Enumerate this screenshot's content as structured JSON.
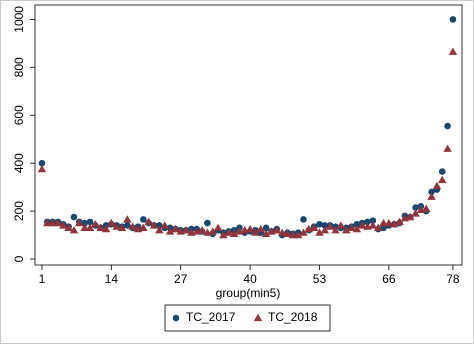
{
  "chart_data": {
    "type": "scatter",
    "x_label": "group(min5)",
    "x": [
      1,
      2,
      3,
      4,
      5,
      6,
      7,
      8,
      9,
      10,
      11,
      12,
      13,
      14,
      15,
      16,
      17,
      18,
      19,
      20,
      21,
      22,
      23,
      24,
      25,
      26,
      27,
      28,
      29,
      30,
      31,
      32,
      33,
      34,
      35,
      36,
      37,
      38,
      39,
      40,
      41,
      42,
      43,
      44,
      45,
      46,
      47,
      48,
      49,
      50,
      51,
      52,
      53,
      54,
      55,
      56,
      57,
      58,
      59,
      60,
      61,
      62,
      63,
      64,
      65,
      66,
      67,
      68,
      69,
      70,
      71,
      72,
      73,
      74,
      75,
      76,
      77,
      78
    ],
    "series": [
      {
        "name": "TC_2017",
        "color": "#1a476f",
        "marker": "circle",
        "values": [
          400,
          155,
          155,
          155,
          145,
          135,
          175,
          155,
          150,
          155,
          140,
          130,
          140,
          145,
          140,
          135,
          140,
          130,
          135,
          165,
          150,
          140,
          140,
          130,
          130,
          125,
          120,
          120,
          125,
          125,
          115,
          150,
          105,
          120,
          110,
          115,
          120,
          130,
          110,
          115,
          120,
          110,
          130,
          115,
          125,
          100,
          110,
          105,
          110,
          165,
          120,
          135,
          145,
          140,
          140,
          135,
          130,
          130,
          135,
          145,
          150,
          155,
          160,
          125,
          130,
          140,
          145,
          150,
          180,
          175,
          215,
          220,
          200,
          280,
          290,
          365,
          555,
          1000
        ]
      },
      {
        "name": "TC_2018",
        "color": "#90353b",
        "marker": "triangle",
        "values": [
          375,
          150,
          150,
          150,
          140,
          130,
          120,
          150,
          130,
          130,
          145,
          130,
          125,
          150,
          135,
          130,
          165,
          135,
          125,
          130,
          155,
          140,
          120,
          140,
          115,
          125,
          115,
          120,
          110,
          115,
          120,
          110,
          115,
          130,
          100,
          110,
          105,
          115,
          120,
          125,
          110,
          125,
          105,
          115,
          120,
          110,
          105,
          100,
          100,
          110,
          125,
          130,
          110,
          120,
          135,
          120,
          140,
          120,
          130,
          125,
          140,
          135,
          140,
          130,
          150,
          150,
          145,
          155,
          170,
          175,
          190,
          205,
          210,
          260,
          305,
          330,
          460,
          865
        ]
      }
    ],
    "xlim": [
      -0.3,
      79.7
    ],
    "ylim": [
      -25,
      1060
    ],
    "xticks": [
      1,
      14,
      27,
      40,
      53,
      66,
      78
    ],
    "yticks": [
      0,
      200,
      400,
      600,
      800,
      1000
    ],
    "legend": "bottom"
  }
}
